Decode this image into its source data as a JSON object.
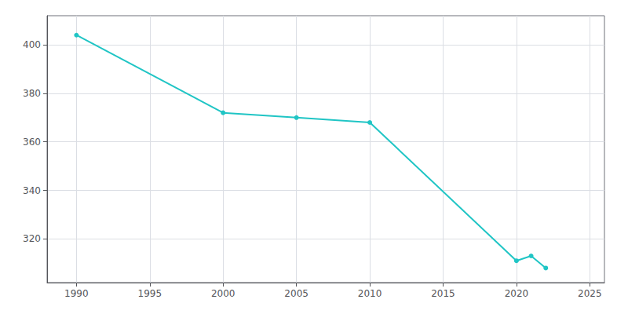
{
  "chart_data": {
    "type": "line",
    "x": [
      1990,
      2000,
      2005,
      2010,
      2020,
      2021,
      2022
    ],
    "values": [
      404,
      372,
      370,
      368,
      311,
      313,
      308
    ],
    "color": "#20C5C5",
    "marker": "circle",
    "xlim": [
      1988,
      2026
    ],
    "ylim": [
      302,
      412
    ],
    "xticks": [
      1990,
      1995,
      2000,
      2005,
      2010,
      2015,
      2020,
      2025
    ],
    "yticks": [
      320,
      340,
      360,
      380,
      400
    ],
    "grid": true
  }
}
